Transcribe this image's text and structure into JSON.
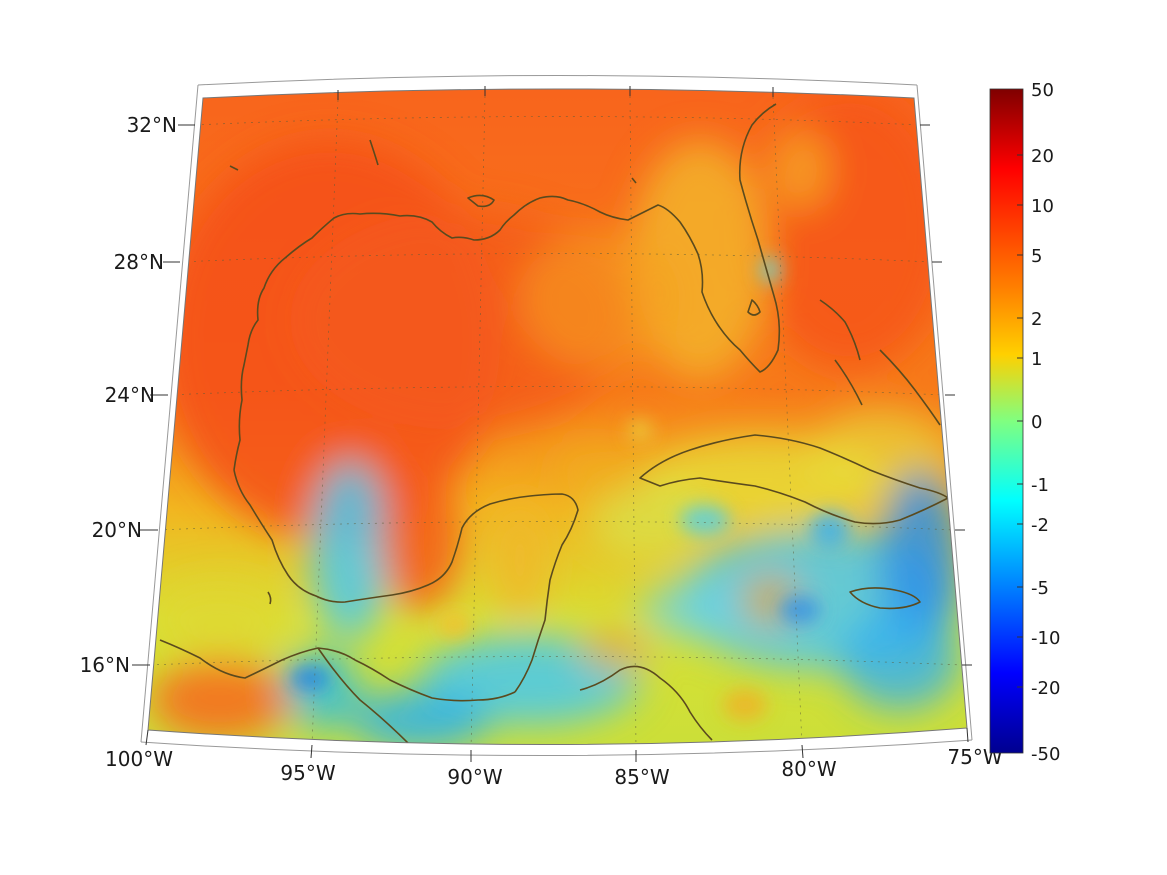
{
  "map": {
    "projection": "conic",
    "extent": {
      "lon_min": -100,
      "lon_max": -75,
      "lat_min": 14,
      "lat_max": 33
    },
    "lat_labels": [
      "32°N",
      "28°N",
      "24°N",
      "20°N",
      "16°N"
    ],
    "lon_labels": [
      "100°W",
      "95°W",
      "90°W",
      "85°W",
      "80°W",
      "75°W"
    ],
    "coastline_color": "#5a4a1e",
    "grid": "dotted"
  },
  "colorbar": {
    "ticks": [
      "50",
      "20",
      "10",
      "5",
      "2",
      "1",
      "0",
      "-1",
      "-2",
      "-5",
      "-10",
      "-20",
      "-50"
    ],
    "colors": [
      "#7f0000",
      "#ff0000",
      "#ff8000",
      "#ffff00",
      "#80ff80",
      "#00ffff",
      "#0080ff",
      "#0000ff",
      "#00008f"
    ],
    "range": [
      -50,
      50
    ],
    "scale": "symmetric-log"
  }
}
